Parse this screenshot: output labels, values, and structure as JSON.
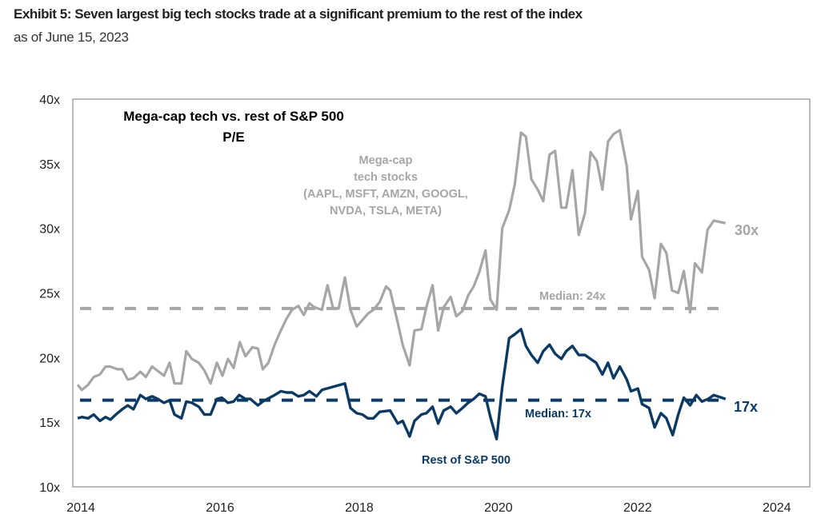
{
  "header": {
    "title": "Exhibit 5: Seven largest big tech stocks trade at a significant premium to the rest of the index",
    "subtitle": "as of June 15, 2023"
  },
  "chart_data": {
    "type": "line",
    "title": "Mega-cap tech vs. rest of S&P 500",
    "title_line2": "P/E",
    "xlim": [
      2013.93,
      2024.52
    ],
    "ylim": [
      10,
      40
    ],
    "x_ticks": [
      2014,
      2016,
      2018,
      2020,
      2022,
      2024
    ],
    "x_tick_labels": [
      "2014",
      "2016",
      "2018",
      "2020",
      "2022",
      "2024"
    ],
    "y_ticks": [
      10,
      15,
      20,
      25,
      30,
      35,
      40
    ],
    "y_tick_labels": [
      "10x",
      "15x",
      "20x",
      "25x",
      "30x",
      "35x",
      "40x"
    ],
    "grid": false,
    "colors": {
      "megacap": "#a6a6a6",
      "rest": "#0d3a63",
      "text": "#000000"
    },
    "series": [
      {
        "name": "Mega-cap tech stocks (AAPL, MSFT, AMZN, GOOGL, NVDA, TSLA, META)",
        "label_lines": [
          "Mega-cap",
          "tech stocks",
          "(AAPL, MSFT, AMZN, GOOGL,",
          "NVDA, TSLA, META)"
        ],
        "end_label": "30x",
        "x": [
          2014.0,
          2014.06,
          2014.15,
          2014.23,
          2014.32,
          2014.4,
          2014.47,
          2014.57,
          2014.64,
          2014.72,
          2014.8,
          2014.9,
          2014.98,
          2015.07,
          2015.24,
          2015.32,
          2015.39,
          2015.49,
          2015.56,
          2015.64,
          2015.74,
          2015.82,
          2015.91,
          2016.0,
          2016.08,
          2016.16,
          2016.24,
          2016.33,
          2016.41,
          2016.51,
          2016.59,
          2016.66,
          2016.74,
          2016.83,
          2016.91,
          2017.0,
          2017.08,
          2017.17,
          2017.25,
          2017.33,
          2017.4,
          2017.51,
          2017.59,
          2017.67,
          2017.75,
          2017.84,
          2017.92,
          2018.01,
          2018.09,
          2018.17,
          2018.25,
          2018.34,
          2018.43,
          2018.49,
          2018.6,
          2018.67,
          2018.77,
          2018.84,
          2018.94,
          2019.01,
          2019.1,
          2019.18,
          2019.26,
          2019.36,
          2019.44,
          2019.53,
          2019.61,
          2019.69,
          2019.77,
          2019.86,
          2019.93,
          2020.02,
          2020.1,
          2020.2,
          2020.28,
          2020.37,
          2020.44,
          2020.52,
          2020.61,
          2020.69,
          2020.78,
          2020.86,
          2020.95,
          2021.02,
          2021.11,
          2021.2,
          2021.29,
          2021.37,
          2021.46,
          2021.54,
          2021.62,
          2021.7,
          2021.79,
          2021.89,
          2021.95,
          2022.05,
          2022.11,
          2022.21,
          2022.29,
          2022.38,
          2022.46,
          2022.54,
          2022.63,
          2022.71,
          2022.8,
          2022.87,
          2022.97,
          2023.05,
          2023.14,
          2023.31
        ],
        "values": [
          17.9,
          17.5,
          17.9,
          18.5,
          18.7,
          19.3,
          19.3,
          19.1,
          19.1,
          18.3,
          18.4,
          18.9,
          18.5,
          19.3,
          18.6,
          19.6,
          18.0,
          18.0,
          20.5,
          19.9,
          19.6,
          19.0,
          18.0,
          19.6,
          18.6,
          19.9,
          19.2,
          21.2,
          20.1,
          20.8,
          20.7,
          19.1,
          19.6,
          21.0,
          22.0,
          23.0,
          23.7,
          24.0,
          23.3,
          24.2,
          23.9,
          23.7,
          25.6,
          23.8,
          23.8,
          26.2,
          23.7,
          22.4,
          22.9,
          23.4,
          23.7,
          24.3,
          25.5,
          25.2,
          22.7,
          21.0,
          19.4,
          22.1,
          22.2,
          23.9,
          25.6,
          22.1,
          23.9,
          24.7,
          23.2,
          23.6,
          24.8,
          25.5,
          26.6,
          28.3,
          24.5,
          23.7,
          30.0,
          31.4,
          33.4,
          37.4,
          37.1,
          33.8,
          33.0,
          32.1,
          35.7,
          36.0,
          31.6,
          31.6,
          34.5,
          29.5,
          31.2,
          35.9,
          35.2,
          33.0,
          36.7,
          37.3,
          37.6,
          34.8,
          30.7,
          32.9,
          27.8,
          26.8,
          24.6,
          28.8,
          28.1,
          25.2,
          25.0,
          26.7,
          23.5,
          27.3,
          26.6,
          29.9,
          30.6,
          30.4
        ],
        "median": 23.8,
        "median_label": "Median: 24x"
      },
      {
        "name": "Rest of S&P 500",
        "end_label": "17x",
        "x": [
          2014.0,
          2014.06,
          2014.15,
          2014.23,
          2014.32,
          2014.4,
          2014.47,
          2014.57,
          2014.64,
          2014.72,
          2014.8,
          2014.9,
          2014.98,
          2015.07,
          2015.15,
          2015.24,
          2015.32,
          2015.39,
          2015.49,
          2015.56,
          2015.64,
          2015.74,
          2015.82,
          2015.91,
          2016.0,
          2016.07,
          2016.16,
          2016.24,
          2016.32,
          2016.41,
          2016.48,
          2016.59,
          2016.66,
          2016.76,
          2016.83,
          2016.92,
          2017.0,
          2017.08,
          2017.17,
          2017.25,
          2017.33,
          2017.43,
          2017.51,
          2017.84,
          2017.92,
          2018.01,
          2018.09,
          2018.17,
          2018.25,
          2018.34,
          2018.49,
          2018.6,
          2018.67,
          2018.77,
          2018.84,
          2018.94,
          2019.01,
          2019.1,
          2019.18,
          2019.26,
          2019.36,
          2019.44,
          2019.53,
          2019.61,
          2019.69,
          2019.77,
          2019.86,
          2019.93,
          2020.02,
          2020.1,
          2020.2,
          2020.28,
          2020.37,
          2020.44,
          2020.52,
          2020.61,
          2020.69,
          2020.78,
          2020.86,
          2020.95,
          2021.02,
          2021.11,
          2021.2,
          2021.29,
          2021.37,
          2021.45,
          2021.54,
          2021.62,
          2021.7,
          2021.79,
          2021.89,
          2021.95,
          2022.05,
          2022.11,
          2022.21,
          2022.29,
          2022.38,
          2022.46,
          2022.55,
          2022.63,
          2022.71,
          2022.8,
          2022.89,
          2022.97,
          2023.06,
          2023.14,
          2023.31
        ],
        "values": [
          15.3,
          15.4,
          15.3,
          15.6,
          15.1,
          15.4,
          15.2,
          15.7,
          16.0,
          16.3,
          16.0,
          17.1,
          16.8,
          17.0,
          16.8,
          16.5,
          16.7,
          15.6,
          15.3,
          16.6,
          16.5,
          16.2,
          15.6,
          15.6,
          16.8,
          16.9,
          16.5,
          16.6,
          17.1,
          16.8,
          16.8,
          16.3,
          16.6,
          16.9,
          17.1,
          17.4,
          17.3,
          17.3,
          17.0,
          17.1,
          17.4,
          17.0,
          17.5,
          18.0,
          16.1,
          15.7,
          15.6,
          15.3,
          15.3,
          15.8,
          15.9,
          14.9,
          15.1,
          13.9,
          15.1,
          15.6,
          15.7,
          16.2,
          14.9,
          15.9,
          16.2,
          15.7,
          16.1,
          16.5,
          16.8,
          17.2,
          17.0,
          15.4,
          13.7,
          17.7,
          21.5,
          21.8,
          22.2,
          20.9,
          20.2,
          19.6,
          20.5,
          21.0,
          20.3,
          19.9,
          20.5,
          20.9,
          20.2,
          20.2,
          19.9,
          19.6,
          18.7,
          19.6,
          18.4,
          19.3,
          18.3,
          17.4,
          17.6,
          16.4,
          16.1,
          14.6,
          15.7,
          15.3,
          14.0,
          15.6,
          16.9,
          16.3,
          17.1,
          16.6,
          16.8,
          17.1,
          16.8
        ],
        "median": 16.7,
        "median_label": "Median: 17x"
      }
    ]
  }
}
